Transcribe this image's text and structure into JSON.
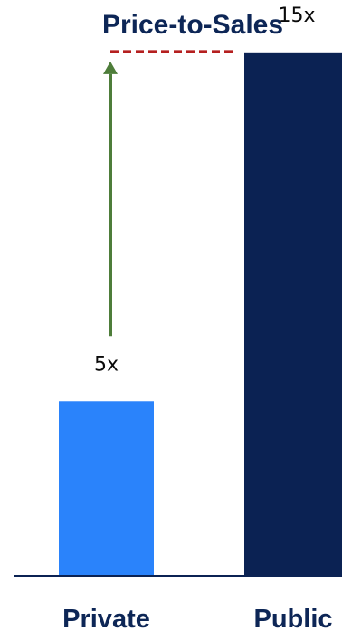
{
  "chart_data": {
    "type": "bar",
    "title": "Price-to-Sales",
    "categories": [
      "Private",
      "Public"
    ],
    "values": [
      5,
      15
    ],
    "value_labels": [
      "5x",
      "15x"
    ],
    "ylim": [
      0,
      16.5
    ],
    "grid": false,
    "legend": "none",
    "annotation": {
      "type": "arrow-with-dashed-reference",
      "from_category": "Private",
      "to_value": 15
    }
  },
  "colors": {
    "title": "#0d2656",
    "text": "#0a0a0a",
    "private_bar": "#2a83fb",
    "public_bar": "#0b2253",
    "baseline": "#0b2253",
    "arrow": "#4e7d3a",
    "dashed_line": "#b51f1f"
  }
}
